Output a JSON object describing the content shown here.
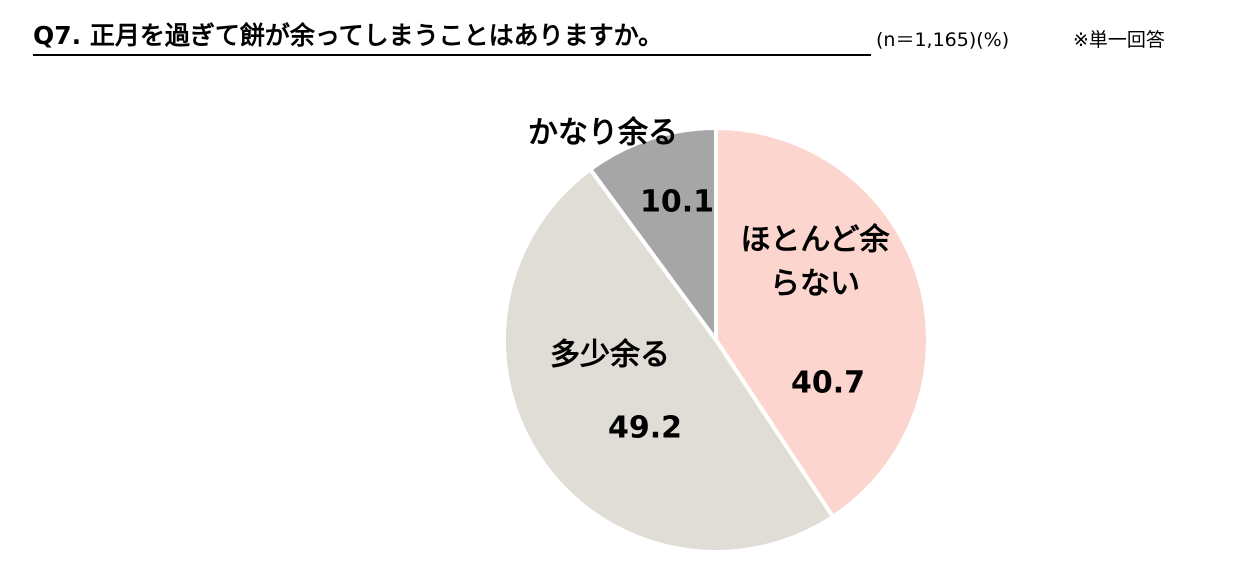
{
  "chart_data": {
    "type": "pie",
    "title": "Q7. 正月を過ぎて餅が余ってしまうことはありますか。",
    "subtitle": "(n＝1,165)(%)",
    "note": "※単一回答",
    "categories": [
      "ほとんど余らない",
      "多少余る",
      "かなり余る"
    ],
    "values": [
      40.7,
      49.2,
      10.1
    ],
    "colors": [
      "#fcd5ce",
      "#dfddd5",
      "#a6a6a6"
    ]
  }
}
